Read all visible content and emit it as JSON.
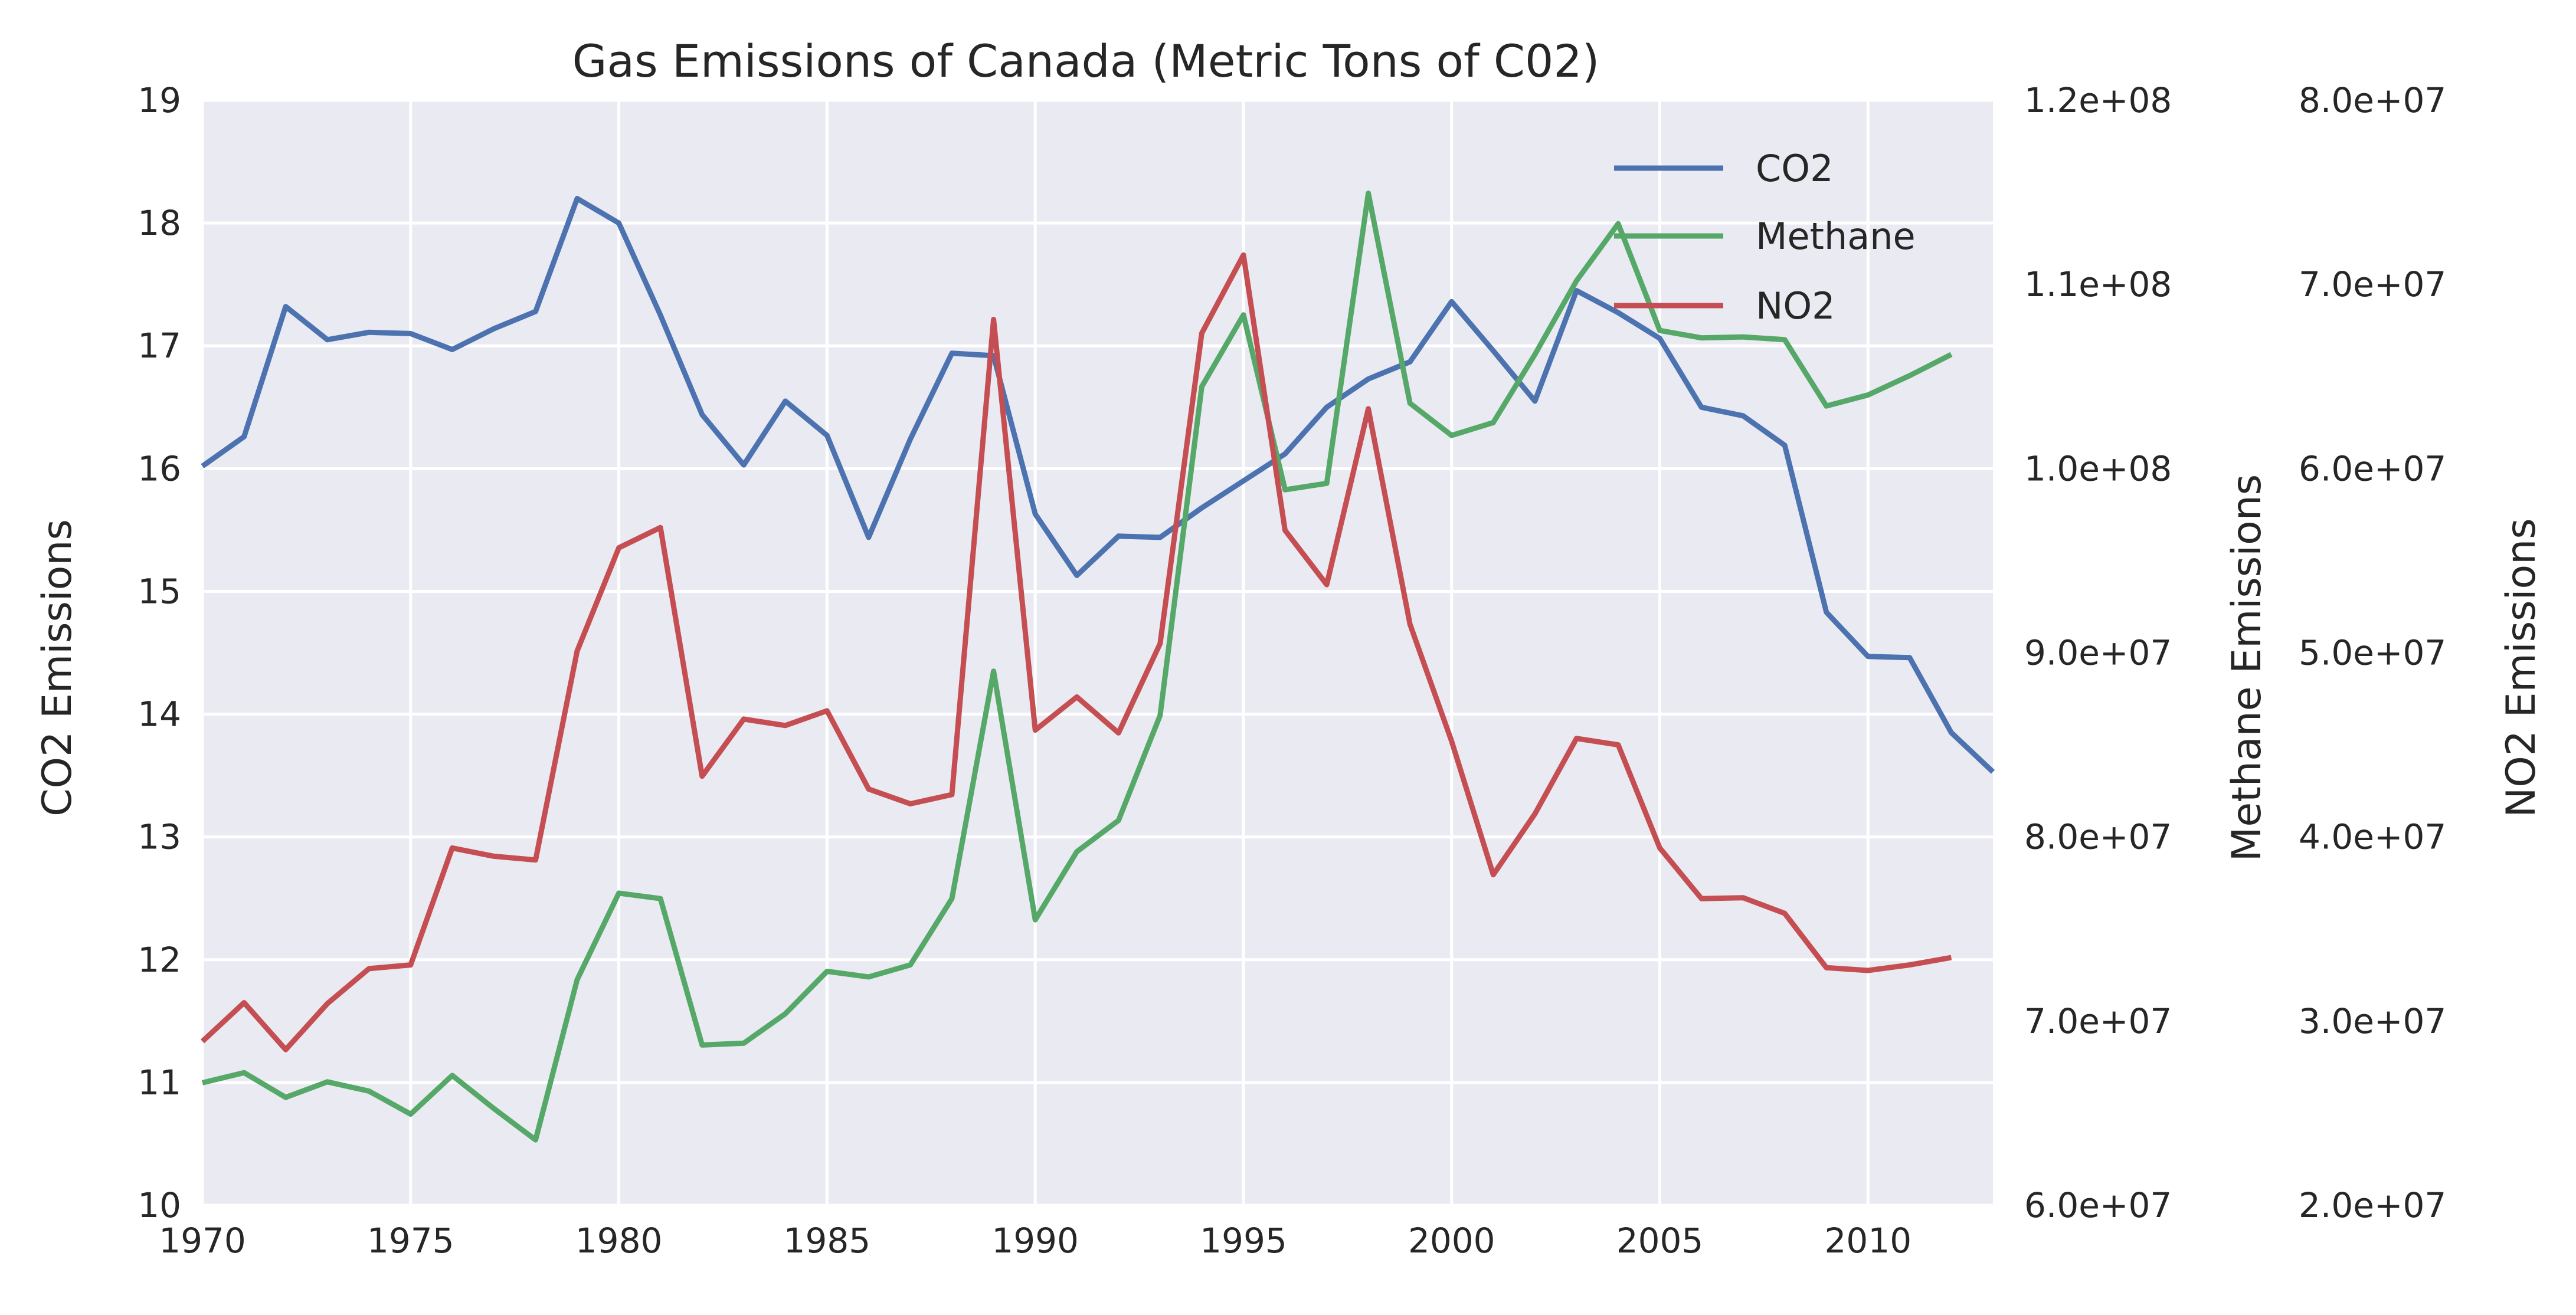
{
  "chart_data": {
    "type": "line",
    "title": "Gas Emissions of Canada (Metric Tons of C02)",
    "background_color": "#EAEAF2",
    "grid": true,
    "legend_position": "top-right",
    "xlim": [
      1970,
      2013
    ],
    "x_ticks": [
      1970,
      1975,
      1980,
      1985,
      1990,
      1995,
      2000,
      2005,
      2010
    ],
    "x_tick_labels": [
      "1970",
      "1975",
      "1980",
      "1985",
      "1990",
      "1995",
      "2000",
      "2005",
      "2010"
    ],
    "axes": {
      "co2": {
        "label": "CO2 Emissions",
        "ylim": [
          10,
          19
        ],
        "ticks": [
          10,
          11,
          12,
          13,
          14,
          15,
          16,
          17,
          18,
          19
        ],
        "tick_labels": [
          "10",
          "11",
          "12",
          "13",
          "14",
          "15",
          "16",
          "17",
          "18",
          "19"
        ]
      },
      "methane": {
        "label": "Methane Emissions",
        "ylim": [
          60000000,
          120000000
        ],
        "ticks": [
          60000000,
          70000000,
          80000000,
          90000000,
          100000000,
          110000000,
          120000000
        ],
        "tick_labels": [
          "6.0e+07",
          "7.0e+07",
          "8.0e+07",
          "9.0e+07",
          "1.0e+08",
          "1.1e+08",
          "1.2e+08"
        ]
      },
      "no2": {
        "label": "NO2 Emissions",
        "ylim": [
          20000000,
          80000000
        ],
        "ticks": [
          20000000,
          30000000,
          40000000,
          50000000,
          60000000,
          70000000,
          80000000
        ],
        "tick_labels": [
          "2.0e+07",
          "3.0e+07",
          "4.0e+07",
          "5.0e+07",
          "6.0e+07",
          "7.0e+07",
          "8.0e+07"
        ]
      }
    },
    "series": [
      {
        "name": "CO2",
        "axis": "co2",
        "color": "#4C72B0",
        "x": [
          1970,
          1971,
          1972,
          1973,
          1974,
          1975,
          1976,
          1977,
          1978,
          1979,
          1980,
          1981,
          1982,
          1983,
          1984,
          1985,
          1986,
          1987,
          1988,
          1989,
          1990,
          1991,
          1992,
          1993,
          1994,
          1995,
          1996,
          1997,
          1998,
          1999,
          2000,
          2001,
          2002,
          2003,
          2004,
          2005,
          2006,
          2007,
          2008,
          2009,
          2010,
          2011,
          2012,
          2013
        ],
        "values": [
          16.02,
          16.26,
          17.32,
          17.05,
          17.11,
          17.1,
          16.97,
          17.14,
          17.28,
          18.2,
          18.0,
          17.25,
          16.44,
          16.03,
          16.55,
          16.27,
          15.44,
          16.24,
          16.94,
          16.92,
          15.63,
          15.13,
          15.45,
          15.44,
          15.68,
          15.9,
          16.12,
          16.5,
          16.73,
          16.87,
          17.36,
          16.96,
          16.55,
          17.45,
          17.27,
          17.06,
          16.5,
          16.43,
          16.19,
          14.83,
          14.47,
          14.46,
          13.85,
          13.53
        ]
      },
      {
        "name": "Methane",
        "axis": "methane",
        "color": "#55A868",
        "x": [
          1970,
          1971,
          1972,
          1973,
          1974,
          1975,
          1976,
          1977,
          1978,
          1979,
          1980,
          1981,
          1982,
          1983,
          1984,
          1985,
          1986,
          1987,
          1988,
          1989,
          1990,
          1991,
          1992,
          1993,
          1994,
          1995,
          1996,
          1997,
          1998,
          1999,
          2000,
          2001,
          2002,
          2003,
          2004,
          2005,
          2006,
          2007,
          2008,
          2009,
          2010,
          2011,
          2012
        ],
        "values": [
          66650000,
          67200000,
          65860000,
          66700000,
          66200000,
          64950000,
          67050000,
          65250000,
          63550000,
          72250000,
          76950000,
          76650000,
          68700000,
          68800000,
          70400000,
          72700000,
          72400000,
          73050000,
          76650000,
          89000000,
          75500000,
          79200000,
          80900000,
          86600000,
          104450000,
          108350000,
          98850000,
          99200000,
          114950000,
          103550000,
          101800000,
          102500000,
          106200000,
          110200000,
          113300000,
          107500000,
          107100000,
          107150000,
          107000000,
          103400000,
          104000000,
          105050000,
          106200000
        ]
      },
      {
        "name": "NO2",
        "axis": "no2",
        "color": "#C44E52",
        "x": [
          1970,
          1971,
          1972,
          1973,
          1974,
          1975,
          1976,
          1977,
          1978,
          1979,
          1980,
          1981,
          1982,
          1983,
          1984,
          1985,
          1986,
          1987,
          1988,
          1989,
          1990,
          1991,
          1992,
          1993,
          1994,
          1995,
          1996,
          1997,
          1998,
          1999,
          2000,
          2001,
          2002,
          2003,
          2004,
          2005,
          2006,
          2007,
          2008,
          2009,
          2010,
          2011,
          2012
        ],
        "values": [
          28900000,
          31000000,
          28450000,
          30950000,
          32850000,
          33050000,
          39400000,
          38950000,
          38750000,
          50100000,
          55700000,
          56800000,
          43300000,
          46400000,
          46050000,
          46850000,
          42600000,
          41800000,
          42300000,
          68100000,
          45800000,
          47600000,
          45650000,
          50500000,
          67350000,
          71600000,
          56650000,
          53700000,
          63250000,
          51550000,
          45200000,
          37950000,
          41250000,
          45350000,
          45000000,
          39400000,
          36650000,
          36700000,
          35850000,
          32900000,
          32750000,
          33050000,
          33450000
        ]
      }
    ]
  }
}
